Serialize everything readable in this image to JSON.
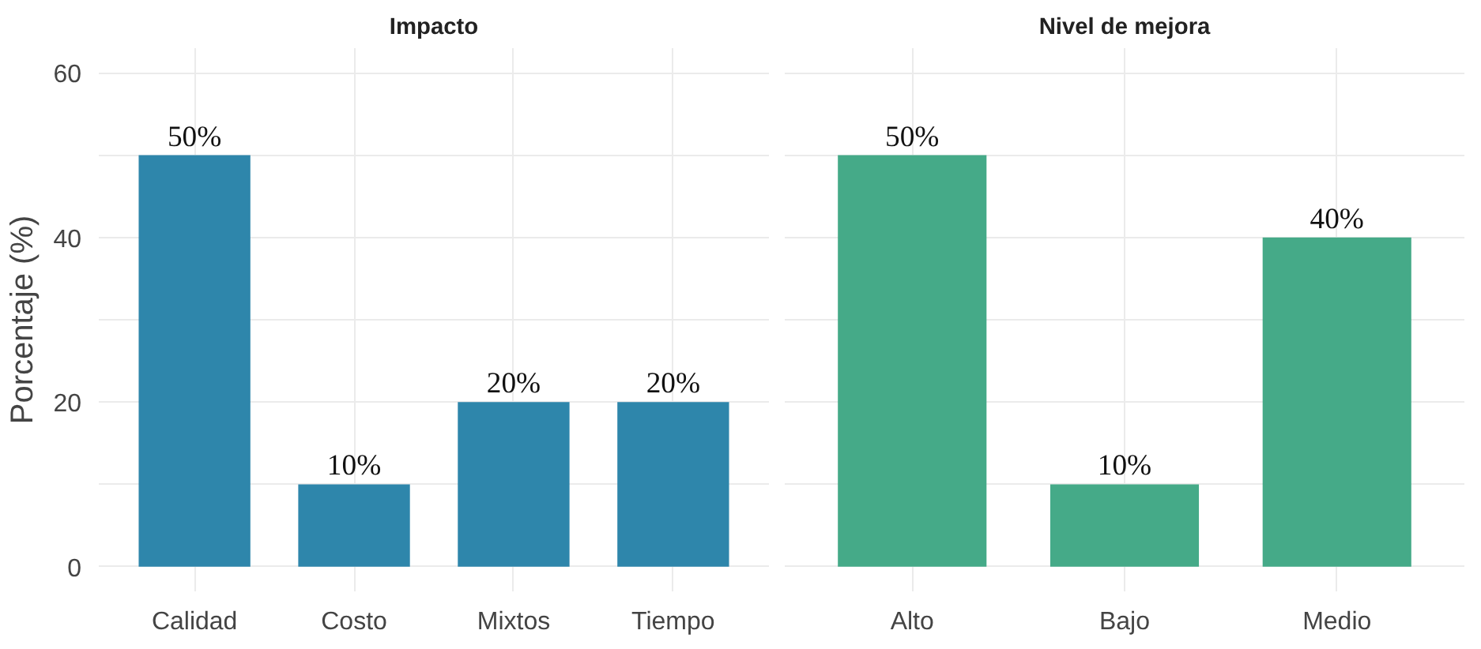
{
  "chart_data": [
    {
      "type": "bar",
      "title": "Impacto",
      "ylabel": "Porcentaje (%)",
      "categories": [
        "Calidad",
        "Costo",
        "Mixtos",
        "Tiempo"
      ],
      "values": [
        50,
        10,
        20,
        20
      ],
      "value_labels": [
        "50%",
        "10%",
        "20%",
        "20%"
      ],
      "color": "#2e86ab",
      "ylim": [
        -3,
        63
      ],
      "yticks": [
        0,
        {
          "value": 10,
          "label": null
        },
        20,
        {
          "value": 30,
          "label": null
        },
        40,
        {
          "value": 50,
          "label": null
        },
        60
      ],
      "grid": true
    },
    {
      "type": "bar",
      "title": "Nivel de mejora",
      "categories": [
        "Alto",
        "Bajo",
        "Medio"
      ],
      "values": [
        50,
        10,
        40
      ],
      "value_labels": [
        "50%",
        "10%",
        "40%"
      ],
      "color": "#45aa88",
      "ylim": [
        -3,
        63
      ],
      "yticks": [
        0,
        {
          "value": 10,
          "label": null
        },
        20,
        {
          "value": 30,
          "label": null
        },
        40,
        {
          "value": 50,
          "label": null
        },
        60
      ],
      "grid": true,
      "tick_labels": "x"
    }
  ]
}
